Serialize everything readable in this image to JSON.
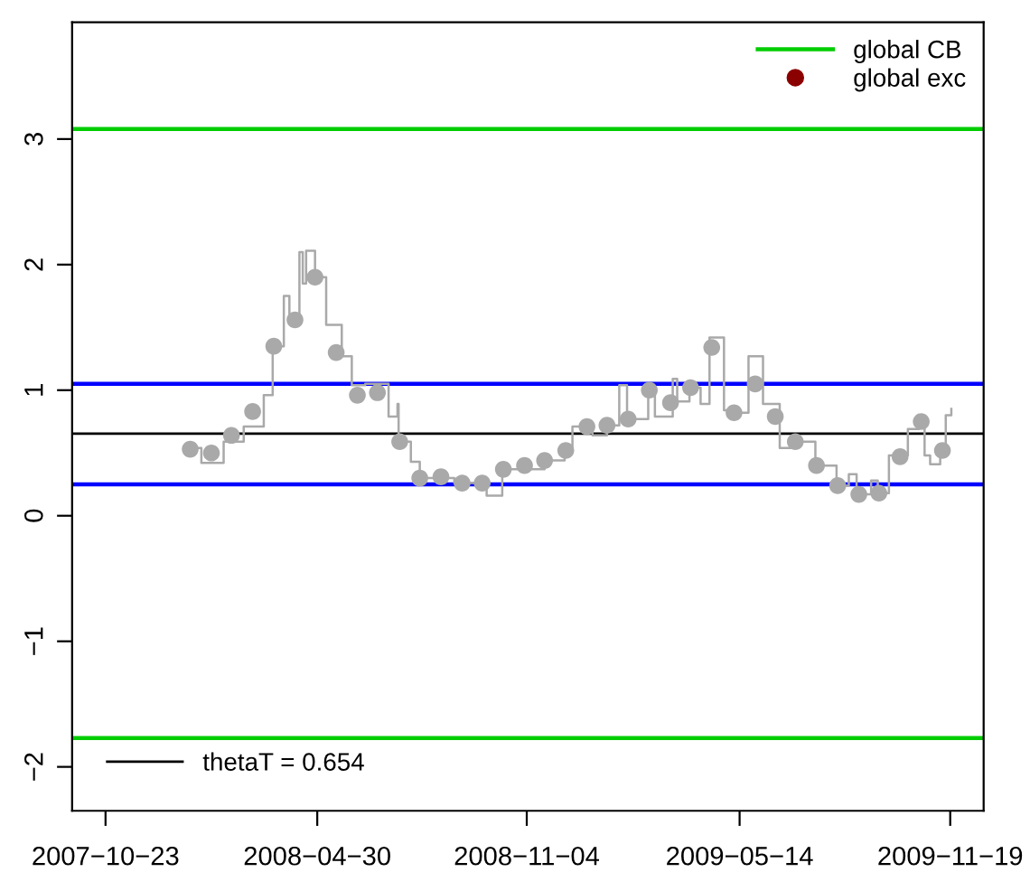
{
  "chart_data": {
    "type": "step",
    "xlim": [
      "2007-09-23",
      "2009-12-19"
    ],
    "ylim": [
      -2.35,
      3.93
    ],
    "xticks": [
      {
        "value": "2007-10-23",
        "label": "2007−10−23"
      },
      {
        "value": "2008-04-30",
        "label": "2008−04−30"
      },
      {
        "value": "2008-11-04",
        "label": "2008−11−04"
      },
      {
        "value": "2009-05-14",
        "label": "2009−05−14"
      },
      {
        "value": "2009-11-19",
        "label": "2009−11−19"
      }
    ],
    "yticks": [
      {
        "value": -2,
        "label": "−2"
      },
      {
        "value": -1,
        "label": "−1"
      },
      0,
      1,
      2,
      3
    ],
    "grid": false,
    "legend": "top right",
    "series": [
      {
        "color": "#a9a9a9",
        "x": [
          "2008-01-04",
          "2008-01-17",
          "2008-02-06",
          "2008-02-24",
          "2008-03-13",
          "2008-03-21",
          "2008-03-31",
          "2008-04-05",
          "2008-04-14",
          "2008-04-17",
          "2008-04-20",
          "2008-04-28",
          "2008-05-08",
          "2008-05-22",
          "2008-05-31",
          "2008-06-12",
          "2008-07-03",
          "2008-07-11",
          "2008-07-12",
          "2008-07-23",
          "2008-07-31",
          "2008-08-31",
          "2008-09-17",
          "2008-09-29",
          "2008-10-13",
          "2008-11-20",
          "2008-12-08",
          "2008-12-15",
          "2009-01-02",
          "2009-01-15",
          "2009-01-26",
          "2009-02-02",
          "2009-02-21",
          "2009-02-27",
          "2009-03-15",
          "2009-03-19",
          "2009-03-30",
          "2009-04-09",
          "2009-04-17",
          "2009-04-30",
          "2009-05-08",
          "2009-05-22",
          "2009-06-04",
          "2009-06-19",
          "2009-07-02",
          "2009-07-21",
          "2009-08-09",
          "2009-08-20",
          "2009-08-27",
          "2009-09-09",
          "2009-09-15",
          "2009-09-25",
          "2009-10-12",
          "2009-10-22",
          "2009-10-27",
          "2009-11-01",
          "2009-11-10",
          "2009-11-15",
          "2009-11-20"
        ],
        "values": [
          0.54,
          0.42,
          0.59,
          0.71,
          0.96,
          1.35,
          1.75,
          1.55,
          2.1,
          1.85,
          2.11,
          1.9,
          1.52,
          1.27,
          1.04,
          1.05,
          0.79,
          0.89,
          0.59,
          0.43,
          0.3,
          0.26,
          0.26,
          0.16,
          0.37,
          0.44,
          0.52,
          0.71,
          0.64,
          0.72,
          1.04,
          0.77,
          1.0,
          0.79,
          1.09,
          0.91,
          1.02,
          0.89,
          1.42,
          0.84,
          0.82,
          1.27,
          0.89,
          0.54,
          0.59,
          0.4,
          0.24,
          0.33,
          0.17,
          0.28,
          0.18,
          0.48,
          0.69,
          0.75,
          0.48,
          0.41,
          0.52,
          0.8,
          0.85
        ]
      },
      {
        "type": "scatter",
        "color": "#a9a9a9",
        "marker": "circle",
        "x": [
          "2008-01-07",
          "2008-01-26",
          "2008-02-13",
          "2008-03-03",
          "2008-03-22",
          "2008-04-10",
          "2008-04-28",
          "2008-05-17",
          "2008-06-05",
          "2008-06-23",
          "2008-07-13",
          "2008-07-31",
          "2008-08-19",
          "2008-09-07",
          "2008-09-25",
          "2008-10-14",
          "2008-11-02",
          "2008-11-20",
          "2008-12-09",
          "2008-12-28",
          "2009-01-15",
          "2009-02-03",
          "2009-02-22",
          "2009-03-13",
          "2009-03-31",
          "2009-04-19",
          "2009-05-09",
          "2009-05-28",
          "2009-06-15",
          "2009-07-03",
          "2009-07-22",
          "2009-08-10",
          "2009-08-29",
          "2009-09-16",
          "2009-10-05",
          "2009-10-24",
          "2009-11-12"
        ],
        "values": [
          0.53,
          0.5,
          0.64,
          0.83,
          1.35,
          1.56,
          1.9,
          1.3,
          0.96,
          0.98,
          0.59,
          0.3,
          0.31,
          0.26,
          0.26,
          0.37,
          0.4,
          0.44,
          0.52,
          0.71,
          0.72,
          0.77,
          1.0,
          0.9,
          1.02,
          1.34,
          0.82,
          1.05,
          0.79,
          0.59,
          0.4,
          0.24,
          0.17,
          0.18,
          0.47,
          0.75,
          0.52
        ]
      },
      {
        "type": "scatter",
        "name": "global exc",
        "color": "#8b0000",
        "marker": "circle"
      }
    ],
    "ref_lines": [
      {
        "axis": "y",
        "value": 3.08,
        "label": "global CB",
        "color": "#00cd00"
      },
      {
        "axis": "y",
        "value": -1.77,
        "color": "#00cd00"
      },
      {
        "axis": "y",
        "value": 1.05,
        "color": "#0000ff"
      },
      {
        "axis": "y",
        "value": 0.25,
        "color": "#0000ff"
      },
      {
        "axis": "y",
        "value": 0.654,
        "label": "thetaT = 0.654",
        "color": "#000000"
      }
    ]
  }
}
